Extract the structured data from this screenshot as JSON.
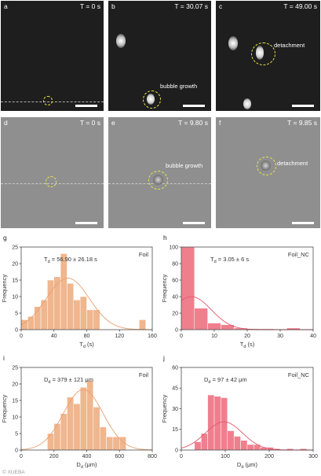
{
  "micrographs": [
    {
      "label": "a",
      "time": "T = 0 s"
    },
    {
      "label": "b",
      "time": "T = 30.07 s",
      "annotation": "bubble growth"
    },
    {
      "label": "c",
      "time": "T = 49.00 s",
      "annotation": "detachment"
    },
    {
      "label": "d",
      "time": "T = 0 s"
    },
    {
      "label": "e",
      "time": "T = 9.80 s",
      "annotation": "bubble growth"
    },
    {
      "label": "f",
      "time": "T = 9.85 s",
      "annotation": "detachment"
    }
  ],
  "colors": {
    "foil": "#f0b68e",
    "foil_line": "#e9a070",
    "nc": "#f07f8e",
    "nc_line": "#e6576b",
    "circle": "#e8e84a"
  },
  "watermark": "© XUEBA",
  "chart_data": [
    {
      "panel": "g",
      "type": "bar",
      "tag": "Foil",
      "stat": "T_d = 56.90 ± 26.18 s",
      "xlabel": "T_d (s)",
      "ylabel": "Frequency",
      "xlim": [
        0,
        160
      ],
      "ylim": [
        0,
        25
      ],
      "xticks": [
        "0",
        "40",
        "80",
        "120",
        "160"
      ],
      "yticks": [
        "0",
        "5",
        "10",
        "15",
        "20",
        "25"
      ],
      "bin_width": 8,
      "bins": [
        0,
        8,
        16,
        24,
        32,
        40,
        48,
        56,
        64,
        72,
        80,
        88,
        144
      ],
      "values": [
        3,
        4,
        7,
        9,
        15,
        16,
        23,
        14,
        9,
        10,
        6,
        6,
        3
      ],
      "fit": {
        "mean": 56.9,
        "sd": 26.18,
        "peak": 15.6
      }
    },
    {
      "panel": "h",
      "type": "bar",
      "tag": "Foil_NC",
      "stat": "T_d = 3.05 ± 6 s",
      "xlabel": "T_d (s)",
      "ylabel": "Frequency",
      "xlim": [
        0,
        40
      ],
      "ylim": [
        0,
        100
      ],
      "xticks": [
        "0",
        "10",
        "20",
        "30",
        "40"
      ],
      "yticks": [
        "0",
        "20",
        "40",
        "60",
        "80",
        "100"
      ],
      "bin_width": 4,
      "bins": [
        0,
        4,
        8,
        12,
        16,
        20,
        24,
        28,
        32
      ],
      "values": [
        100,
        26,
        8,
        6,
        2,
        1,
        1,
        0,
        2
      ],
      "fit": {
        "mean": 3.05,
        "sd": 6,
        "peak": 40
      }
    },
    {
      "panel": "i",
      "type": "bar",
      "tag": "Foil",
      "stat": "D_d = 379 ± 121 μm",
      "xlabel": "D_d (μm)",
      "ylabel": "Frequency",
      "xlim": [
        0,
        800
      ],
      "ylim": [
        0,
        25
      ],
      "xticks": [
        "0",
        "200",
        "400",
        "600",
        "800"
      ],
      "yticks": [
        "0",
        "5",
        "10",
        "15",
        "20",
        "25"
      ],
      "bin_width": 40,
      "bins": [
        160,
        200,
        240,
        280,
        320,
        360,
        400,
        440,
        480,
        520,
        560,
        600
      ],
      "values": [
        5,
        8,
        11,
        16,
        14,
        19,
        21,
        13,
        7,
        4,
        4,
        4
      ],
      "fit": {
        "mean": 379,
        "sd": 121,
        "peak": 18.3
      }
    },
    {
      "panel": "j",
      "type": "bar",
      "tag": "Foil_NC",
      "stat": "D_d = 97 ± 42 μm",
      "xlabel": "D_d (μm)",
      "ylabel": "Frequency",
      "xlim": [
        0,
        300
      ],
      "ylim": [
        0,
        60
      ],
      "xticks": [
        "0",
        "100",
        "200",
        "300"
      ],
      "yticks": [
        "0",
        "15",
        "30",
        "45",
        "60"
      ],
      "bin_width": 15,
      "bins": [
        30,
        45,
        60,
        75,
        90,
        105,
        120,
        135,
        150,
        165,
        180,
        195,
        210,
        240,
        270
      ],
      "values": [
        6,
        12,
        40,
        39,
        38,
        14,
        10,
        7,
        4,
        4,
        2,
        2,
        1,
        1,
        1
      ],
      "fit": {
        "mean": 97,
        "sd": 42,
        "peak": 20.5
      }
    }
  ]
}
